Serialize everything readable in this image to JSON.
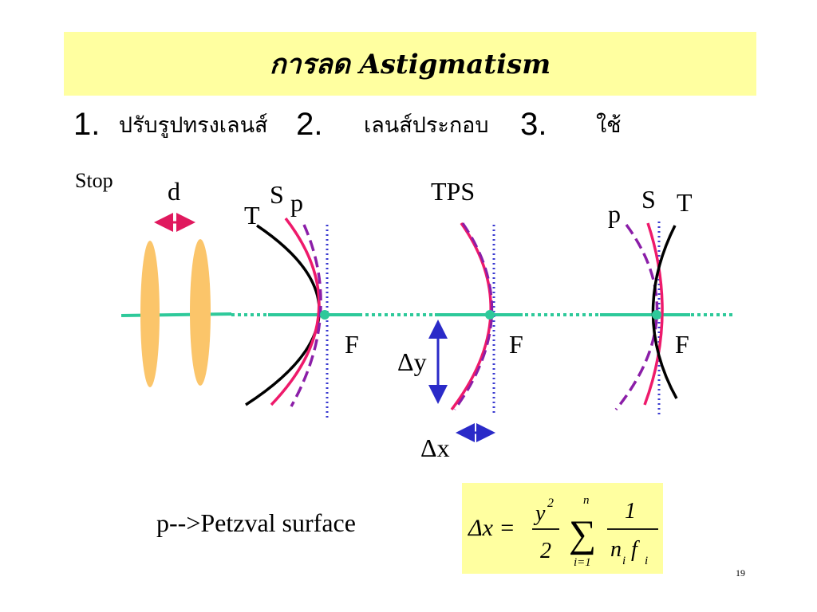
{
  "slide": {
    "title": "การลด Astigmatism",
    "methods": [
      {
        "number": "1.",
        "text": "ปรับรูปทรงเลนส์"
      },
      {
        "number": "2.",
        "text": "เลนส์ประกอบ"
      },
      {
        "number": "3.",
        "text": "ใช้"
      }
    ],
    "page_number": "19",
    "colors": {
      "title_background": "#ffffa0",
      "formula_background": "#ffffa0",
      "lens": "#fbc56a",
      "optical_axis": "#2ec99a",
      "tangential_curve": "#000000",
      "sagittal_curve": "#ee1a6b",
      "petzval_curve": "#8b1ea8",
      "focal_plane": "#3a3ad0",
      "arrow_d": "#e0195e",
      "arrow_delta": "#2a2ac8"
    }
  },
  "diagram": {
    "stop_label": "Stop",
    "spacing_label": "d",
    "group1": {
      "t": "T",
      "s": "S",
      "p": "p",
      "f": "F"
    },
    "group2": {
      "heading": "TPS",
      "f": "F",
      "dy": "Δy",
      "dx": "Δx"
    },
    "group3": {
      "p": "p",
      "s": "S",
      "t": "T",
      "f": "F"
    },
    "legend": "p-->Petzval  surface"
  },
  "formula": {
    "lhs": "Δx =",
    "num1": "y",
    "sup1": "2",
    "den1": "2",
    "sum_top": "n",
    "sum_symbol": "∑",
    "sum_bottom": "i=1",
    "num2": "1",
    "den2_n": "n",
    "den2_nsub": "i",
    "den2_f": "f",
    "den2_fsub": "i"
  }
}
